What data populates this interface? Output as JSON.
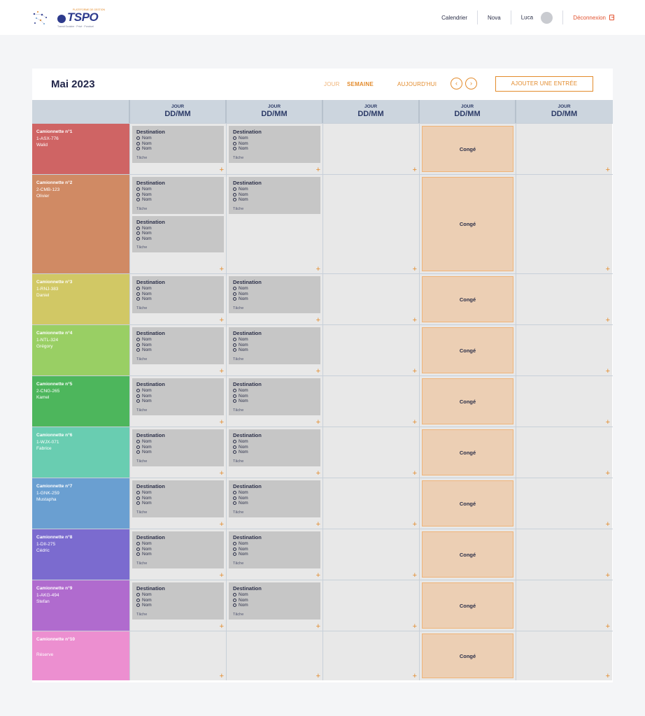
{
  "header": {
    "logo_text": "TSPO",
    "logo_top_text": "PLATEFORME DE GESTION",
    "logo_tagline": "Transit Scolaire · Privé · Ponctuel",
    "nav": {
      "calendar": "Calendrier",
      "user1": "Nova",
      "user2": "Luca",
      "logout": "Déconnexion"
    }
  },
  "calendar": {
    "month": "Mai 2023",
    "view_day": "JOUR",
    "view_week": "SEMAINE",
    "today": "AUJOURD'HUI",
    "prev": "‹",
    "next": "›",
    "add_entry": "AJOUTER UNE ENTRÉE",
    "columns": [
      {
        "l1": "JOUR",
        "l2": "DD/MM"
      },
      {
        "l1": "JOUR",
        "l2": "DD/MM"
      },
      {
        "l1": "JOUR",
        "l2": "DD/MM"
      },
      {
        "l1": "JOUR",
        "l2": "DD/MM"
      },
      {
        "l1": "JOUR",
        "l2": "DD/MM"
      }
    ],
    "entry": {
      "destination": "Destination",
      "name": "Nom",
      "task": "Tâche"
    },
    "conge_label": "Congé",
    "plus": "+",
    "vans": [
      {
        "name": "Camionnette n°1",
        "plate": "1-ASX-776",
        "driver": "Walid",
        "color": "#cf6464"
      },
      {
        "name": "Camionnette n°2",
        "plate": "2-CMB-123",
        "driver": "Olivier",
        "color": "#d08a64"
      },
      {
        "name": "Camionnette n°3",
        "plate": "1-RNJ-383",
        "driver": "Daniel",
        "color": "#d1c865"
      },
      {
        "name": "Camionnette n°4",
        "plate": "1-NTL-324",
        "driver": "Grégory",
        "color": "#99cf64"
      },
      {
        "name": "Camionnette n°5",
        "plate": "2-CNG-265",
        "driver": "Kamel",
        "color": "#4db65c"
      },
      {
        "name": "Camionnette n°6",
        "plate": "1-WJX-071",
        "driver": "Fabrice",
        "color": "#69cdb1"
      },
      {
        "name": "Camionnette n°7",
        "plate": "1-GNK-259",
        "driver": "Mustapha",
        "color": "#6a9fd1"
      },
      {
        "name": "Camionnette n°8",
        "plate": "1-DII-275",
        "driver": "Cédric",
        "color": "#7b6bcf"
      },
      {
        "name": "Camionnette n°9",
        "plate": "1-AKG-494",
        "driver": "Stefan",
        "color": "#b06bce"
      },
      {
        "name": "Camionnette n°10",
        "plate": "",
        "driver": "Réserve",
        "color": "#ec8fd0"
      }
    ]
  }
}
